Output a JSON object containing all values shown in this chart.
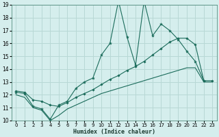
{
  "xlabel": "Humidex (Indice chaleur)",
  "bg_color": "#d5eeed",
  "grid_color": "#b8d8d5",
  "line_color": "#1a6b5a",
  "xlim": [
    -0.5,
    23.5
  ],
  "ylim": [
    10,
    19
  ],
  "xticks": [
    0,
    1,
    2,
    3,
    4,
    5,
    6,
    7,
    8,
    9,
    10,
    11,
    12,
    13,
    14,
    15,
    16,
    17,
    18,
    19,
    20,
    21,
    22,
    23
  ],
  "yticks": [
    10,
    11,
    12,
    13,
    14,
    15,
    16,
    17,
    18,
    19
  ],
  "line1_x": [
    0,
    1,
    2,
    3,
    4,
    5,
    6,
    7,
    8,
    9,
    10,
    11,
    12,
    13,
    14,
    15,
    16,
    17,
    18,
    19,
    20,
    21,
    22,
    23
  ],
  "line1_y": [
    12.2,
    12.1,
    11.1,
    10.9,
    10.1,
    11.2,
    11.5,
    12.5,
    13.0,
    13.3,
    15.1,
    16.0,
    19.3,
    16.5,
    14.3,
    19.3,
    16.6,
    17.5,
    17.0,
    16.3,
    15.4,
    14.6,
    13.1,
    null
  ],
  "line2_x": [
    0,
    1,
    2,
    3,
    4,
    5,
    6,
    7,
    8,
    9,
    10,
    11,
    12,
    13,
    14,
    15,
    16,
    17,
    18,
    19,
    20,
    21,
    22,
    23
  ],
  "line2_y": [
    12.3,
    12.2,
    11.6,
    11.5,
    11.2,
    11.1,
    11.4,
    11.8,
    12.1,
    12.4,
    12.8,
    13.2,
    13.5,
    13.9,
    14.2,
    14.6,
    15.1,
    15.6,
    16.1,
    16.4,
    16.4,
    15.9,
    13.1,
    13.1
  ],
  "line3_x": [
    0,
    1,
    2,
    3,
    4,
    5,
    6,
    7,
    8,
    9,
    10,
    11,
    12,
    13,
    14,
    15,
    16,
    17,
    18,
    19,
    20,
    21,
    22,
    23
  ],
  "line3_y": [
    12.0,
    11.8,
    11.0,
    10.8,
    10.0,
    10.4,
    10.9,
    11.2,
    11.5,
    11.8,
    12.1,
    12.3,
    12.5,
    12.7,
    12.9,
    13.1,
    13.3,
    13.5,
    13.7,
    13.9,
    14.1,
    14.1,
    13.0,
    13.0
  ]
}
